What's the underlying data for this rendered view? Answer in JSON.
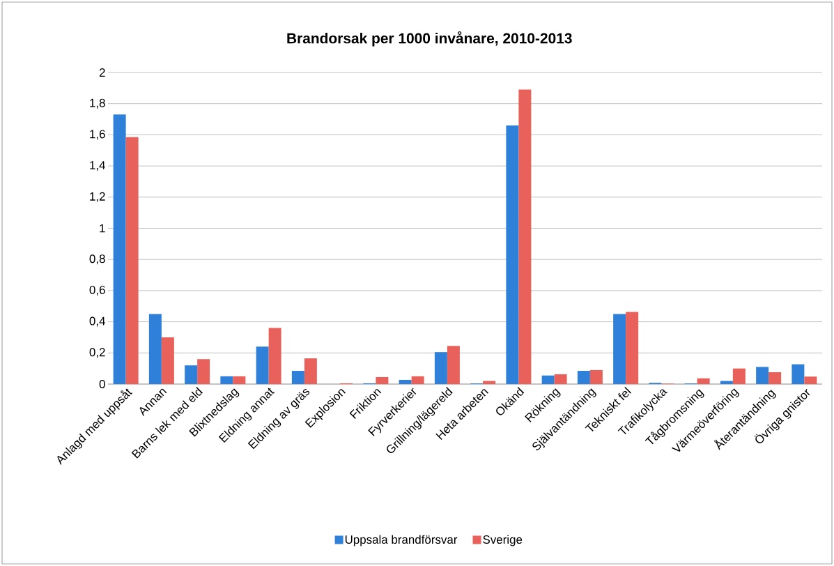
{
  "chart_data": {
    "type": "bar",
    "title": "Brandorsak per 1000 invånare, 2010-2013",
    "categories": [
      "Anlagd med uppsåt",
      "Annan",
      "Barns lek med eld",
      "Blixtnedslag",
      "Eldning annat",
      "Eldning av gräs",
      "Explosion",
      "Friktion",
      "Fyrverkerier",
      "Grillning/lägereld",
      "Heta arbeten",
      "Okänd",
      "Rökning",
      "Självantändning",
      "Tekniskt fel",
      "Trafikolycka",
      "Tågbromsning",
      "Värmeöverföring",
      "Återantändning",
      "Övriga gnistor"
    ],
    "series": [
      {
        "name": "Uppsala brandförsvar",
        "color": "#2f80d8",
        "values": [
          1.73,
          0.45,
          0.12,
          0.05,
          0.24,
          0.085,
          0,
          0.005,
          0.027,
          0.205,
          0.004,
          1.66,
          0.055,
          0.085,
          0.45,
          0.008,
          0.004,
          0.02,
          0.11,
          0.127
        ]
      },
      {
        "name": "Sverige",
        "color": "#e8615a",
        "values": [
          1.585,
          0.3,
          0.16,
          0.05,
          0.36,
          0.165,
          0.005,
          0.045,
          0.05,
          0.245,
          0.02,
          1.89,
          0.063,
          0.09,
          0.463,
          0.003,
          0.037,
          0.1,
          0.076,
          0.048
        ]
      }
    ],
    "ylim": [
      0,
      2
    ],
    "yticks": [
      0,
      {
        "value": 0.2,
        "label": "0,2"
      },
      {
        "value": 0.4,
        "label": "0,4"
      },
      {
        "value": 0.6,
        "label": "0,6"
      },
      {
        "value": 0.8,
        "label": "0,8"
      },
      1,
      {
        "value": 1.2,
        "label": "1,2"
      },
      {
        "value": 1.4,
        "label": "1,4"
      },
      {
        "value": 1.6,
        "label": "1,6"
      },
      {
        "value": 1.8,
        "label": "1,8"
      },
      2
    ],
    "grid": "y",
    "legend": "bottom"
  }
}
